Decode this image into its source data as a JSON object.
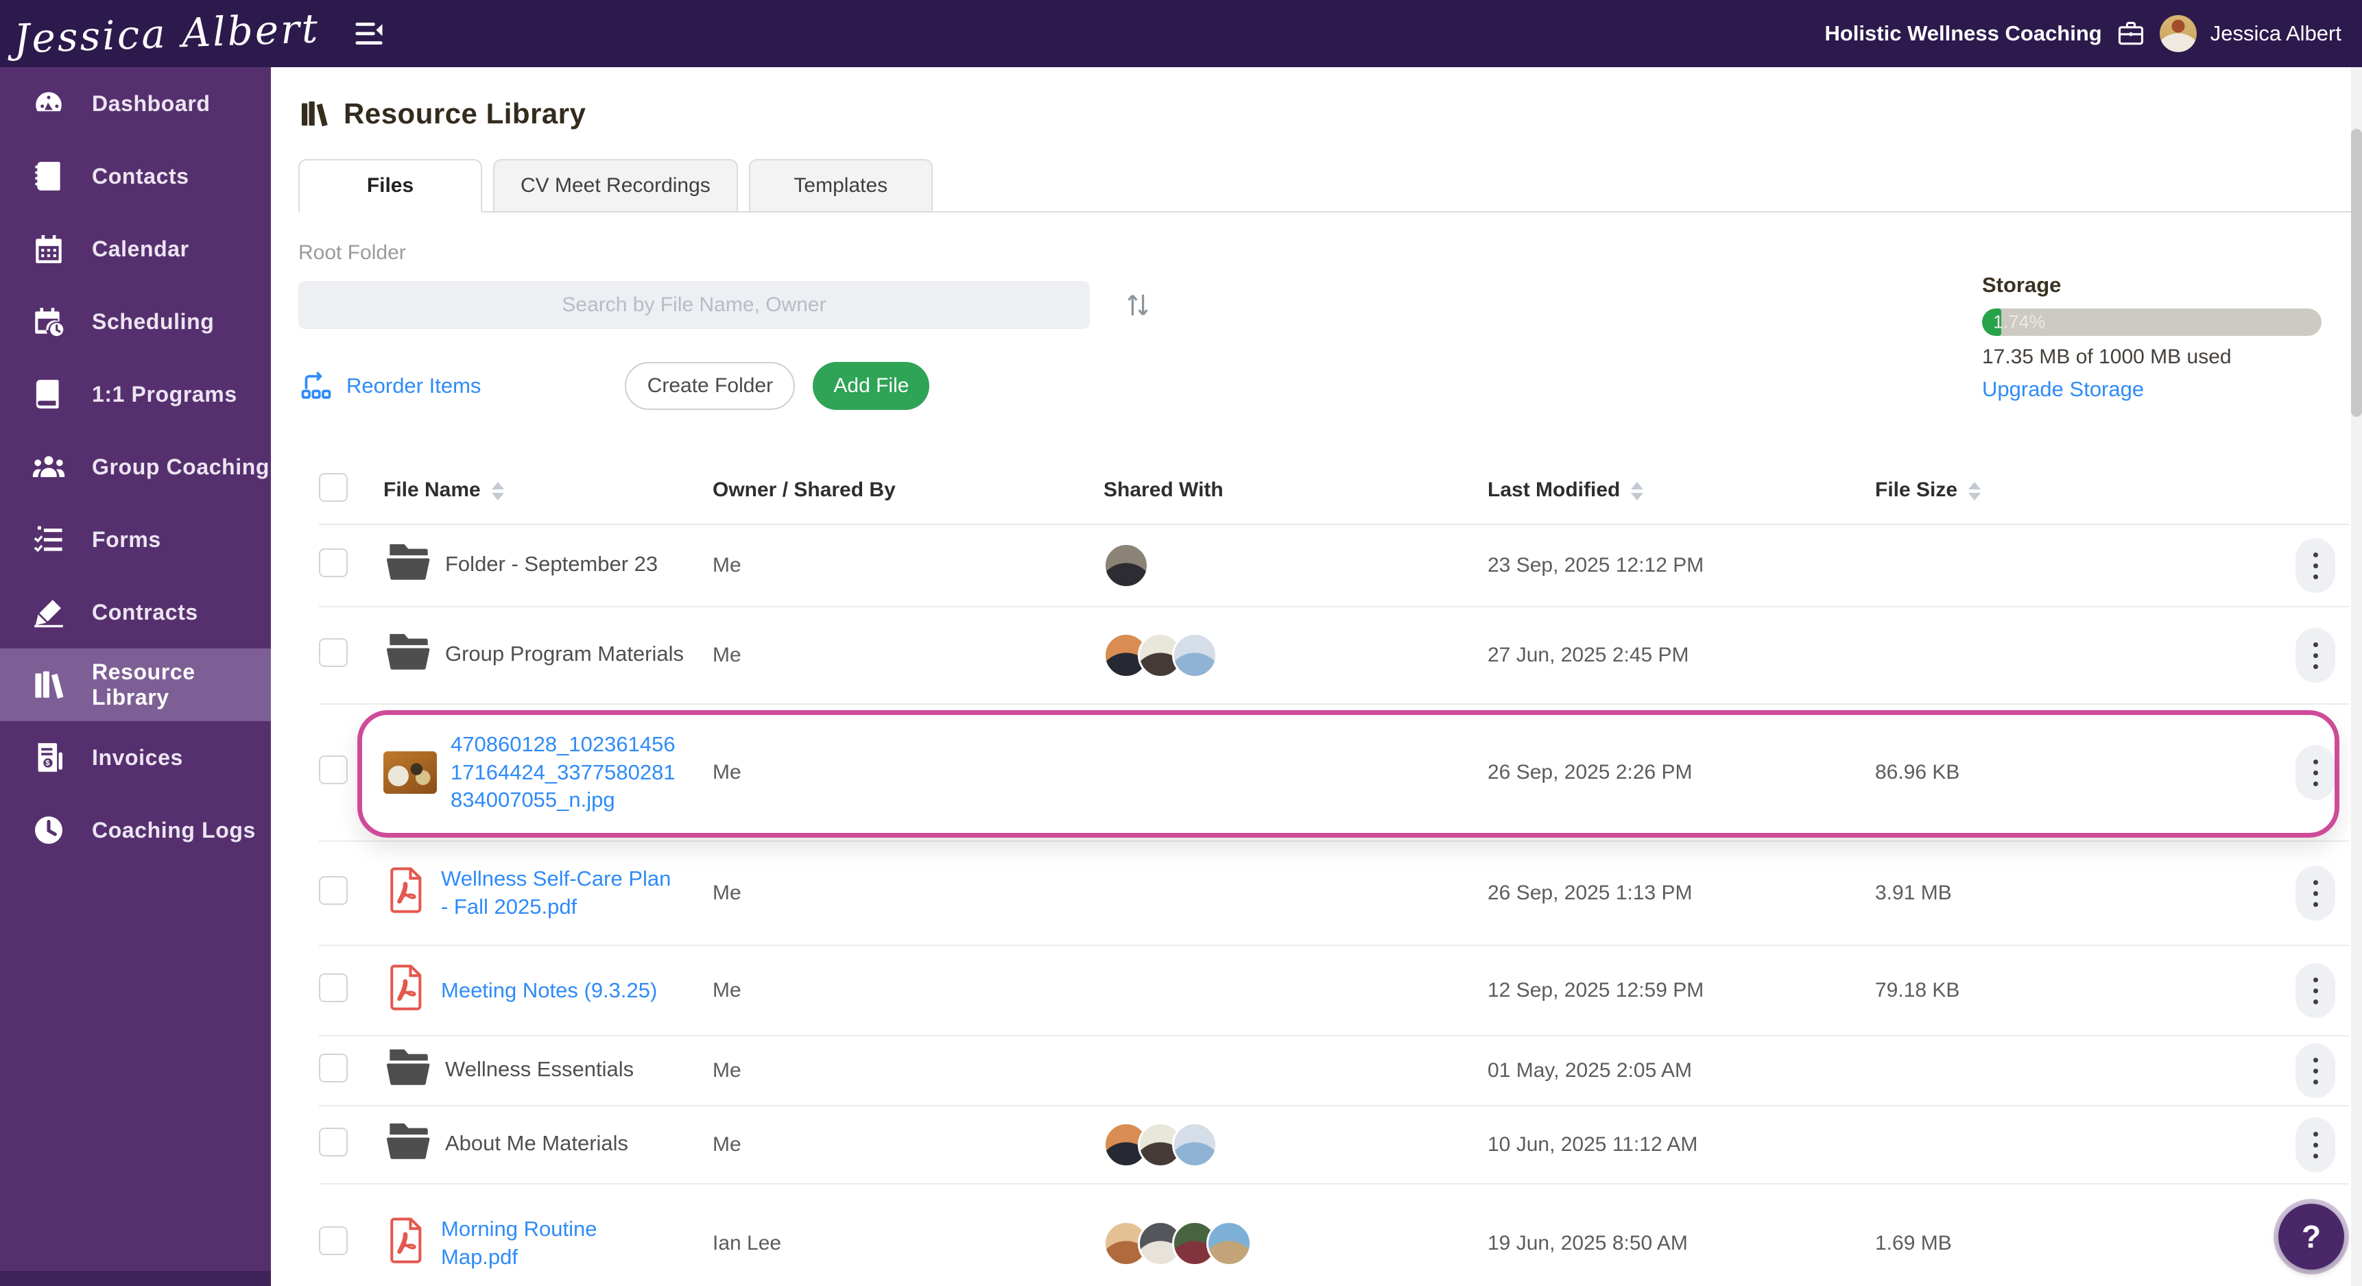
{
  "colors": {
    "topbar": "#2c1a4d",
    "sidebar": "#56306e",
    "sidebar_active": "#7e5f95",
    "link_blue": "#2e8bf7",
    "button_green": "#2fa356",
    "storage_green": "#27a34a",
    "pdf_red": "#e4584e",
    "pink_highlight": "#ce4b99",
    "help_purple": "#4a2768"
  },
  "topbar": {
    "logo": "Jessica Albert",
    "business_name": "Holistic Wellness Coaching",
    "user_name": "Jessica Albert"
  },
  "sidebar": {
    "items": [
      {
        "label": "Dashboard",
        "icon": "dashboard-icon",
        "active": false
      },
      {
        "label": "Contacts",
        "icon": "contacts-icon",
        "active": false
      },
      {
        "label": "Calendar",
        "icon": "calendar-icon",
        "active": false
      },
      {
        "label": "Scheduling",
        "icon": "scheduling-icon",
        "active": false
      },
      {
        "label": "1:1 Programs",
        "icon": "programs-icon",
        "active": false
      },
      {
        "label": "Group Coaching",
        "icon": "group-coaching-icon",
        "active": false
      },
      {
        "label": "Forms",
        "icon": "forms-icon",
        "active": false
      },
      {
        "label": "Contracts",
        "icon": "contracts-icon",
        "active": false
      },
      {
        "label": "Resource Library",
        "icon": "resource-library-icon",
        "active": true
      },
      {
        "label": "Invoices",
        "icon": "invoices-icon",
        "active": false
      },
      {
        "label": "Coaching Logs",
        "icon": "coaching-logs-icon",
        "active": false
      }
    ]
  },
  "page": {
    "title": "Resource Library",
    "tabs": [
      {
        "label": "Files",
        "active": true
      },
      {
        "label": "CV Meet Recordings",
        "active": false
      },
      {
        "label": "Templates",
        "active": false
      }
    ],
    "breadcrumb": "Root Folder",
    "search_placeholder": "Search by File Name, Owner",
    "actions": {
      "reorder": "Reorder Items",
      "create_folder": "Create Folder",
      "add_file": "Add File"
    },
    "storage": {
      "title": "Storage",
      "percent": 1.74,
      "percent_label": "1.74%",
      "usage": "17.35 MB of 1000 MB used",
      "upgrade_label": "Upgrade Storage"
    },
    "help_label": "?"
  },
  "table": {
    "columns": [
      {
        "label": "File Name",
        "sortable": true
      },
      {
        "label": "Owner / Shared By",
        "sortable": false
      },
      {
        "label": "Shared With",
        "sortable": false
      },
      {
        "label": "Last Modified",
        "sortable": true
      },
      {
        "label": "File Size",
        "sortable": true
      }
    ],
    "rows": [
      {
        "type": "folder",
        "name": "Folder - September 23",
        "owner": "Me",
        "modified": "23 Sep, 2025 12:12 PM",
        "size": "",
        "highlighted": false,
        "avatars": [
          [
            "#8a8376",
            "#2e2c33"
          ]
        ]
      },
      {
        "type": "folder",
        "name": "Group Program Materials",
        "owner": "Me",
        "modified": "27 Jun, 2025 2:45 PM",
        "size": "",
        "highlighted": false,
        "avatars": [
          [
            "#d98d52",
            "#262833"
          ],
          [
            "#e9e6da",
            "#463a36"
          ],
          [
            "#d4dde8",
            "#8fb3d4"
          ]
        ]
      },
      {
        "type": "image",
        "name": "470860128_10236145617164424_3377580281834007055_n.jpg",
        "owner": "Me",
        "modified": "26 Sep, 2025 2:26 PM",
        "size": "86.96 KB",
        "highlighted": true,
        "avatars": []
      },
      {
        "type": "pdf",
        "name": "Wellness Self-Care Plan - Fall 2025.pdf",
        "owner": "Me",
        "modified": "26 Sep, 2025 1:13 PM",
        "size": "3.91 MB",
        "highlighted": false,
        "avatars": []
      },
      {
        "type": "pdf",
        "name": "Meeting Notes (9.3.25)",
        "owner": "Me",
        "modified": "12 Sep, 2025 12:59 PM",
        "size": "79.18 KB",
        "highlighted": false,
        "avatars": []
      },
      {
        "type": "folder",
        "name": "Wellness Essentials",
        "owner": "Me",
        "modified": "01 May, 2025 2:05 AM",
        "size": "",
        "highlighted": false,
        "avatars": []
      },
      {
        "type": "folder",
        "name": "About Me Materials",
        "owner": "Me",
        "modified": "10 Jun, 2025 11:12 AM",
        "size": "",
        "highlighted": false,
        "avatars": [
          [
            "#d98d52",
            "#262833"
          ],
          [
            "#e9e6da",
            "#463a36"
          ],
          [
            "#d4dde8",
            "#8fb3d4"
          ]
        ]
      },
      {
        "type": "pdf",
        "name": "Morning Routine Map.pdf",
        "owner": "Ian Lee",
        "modified": "19 Jun, 2025 8:50 AM",
        "size": "1.69 MB",
        "highlighted": false,
        "avatars": [
          [
            "#e3c193",
            "#b06a3e"
          ],
          [
            "#55555c",
            "#e8e3da"
          ],
          [
            "#48633f",
            "#82343c"
          ],
          [
            "#7db0d6",
            "#c3a478"
          ]
        ]
      }
    ]
  }
}
